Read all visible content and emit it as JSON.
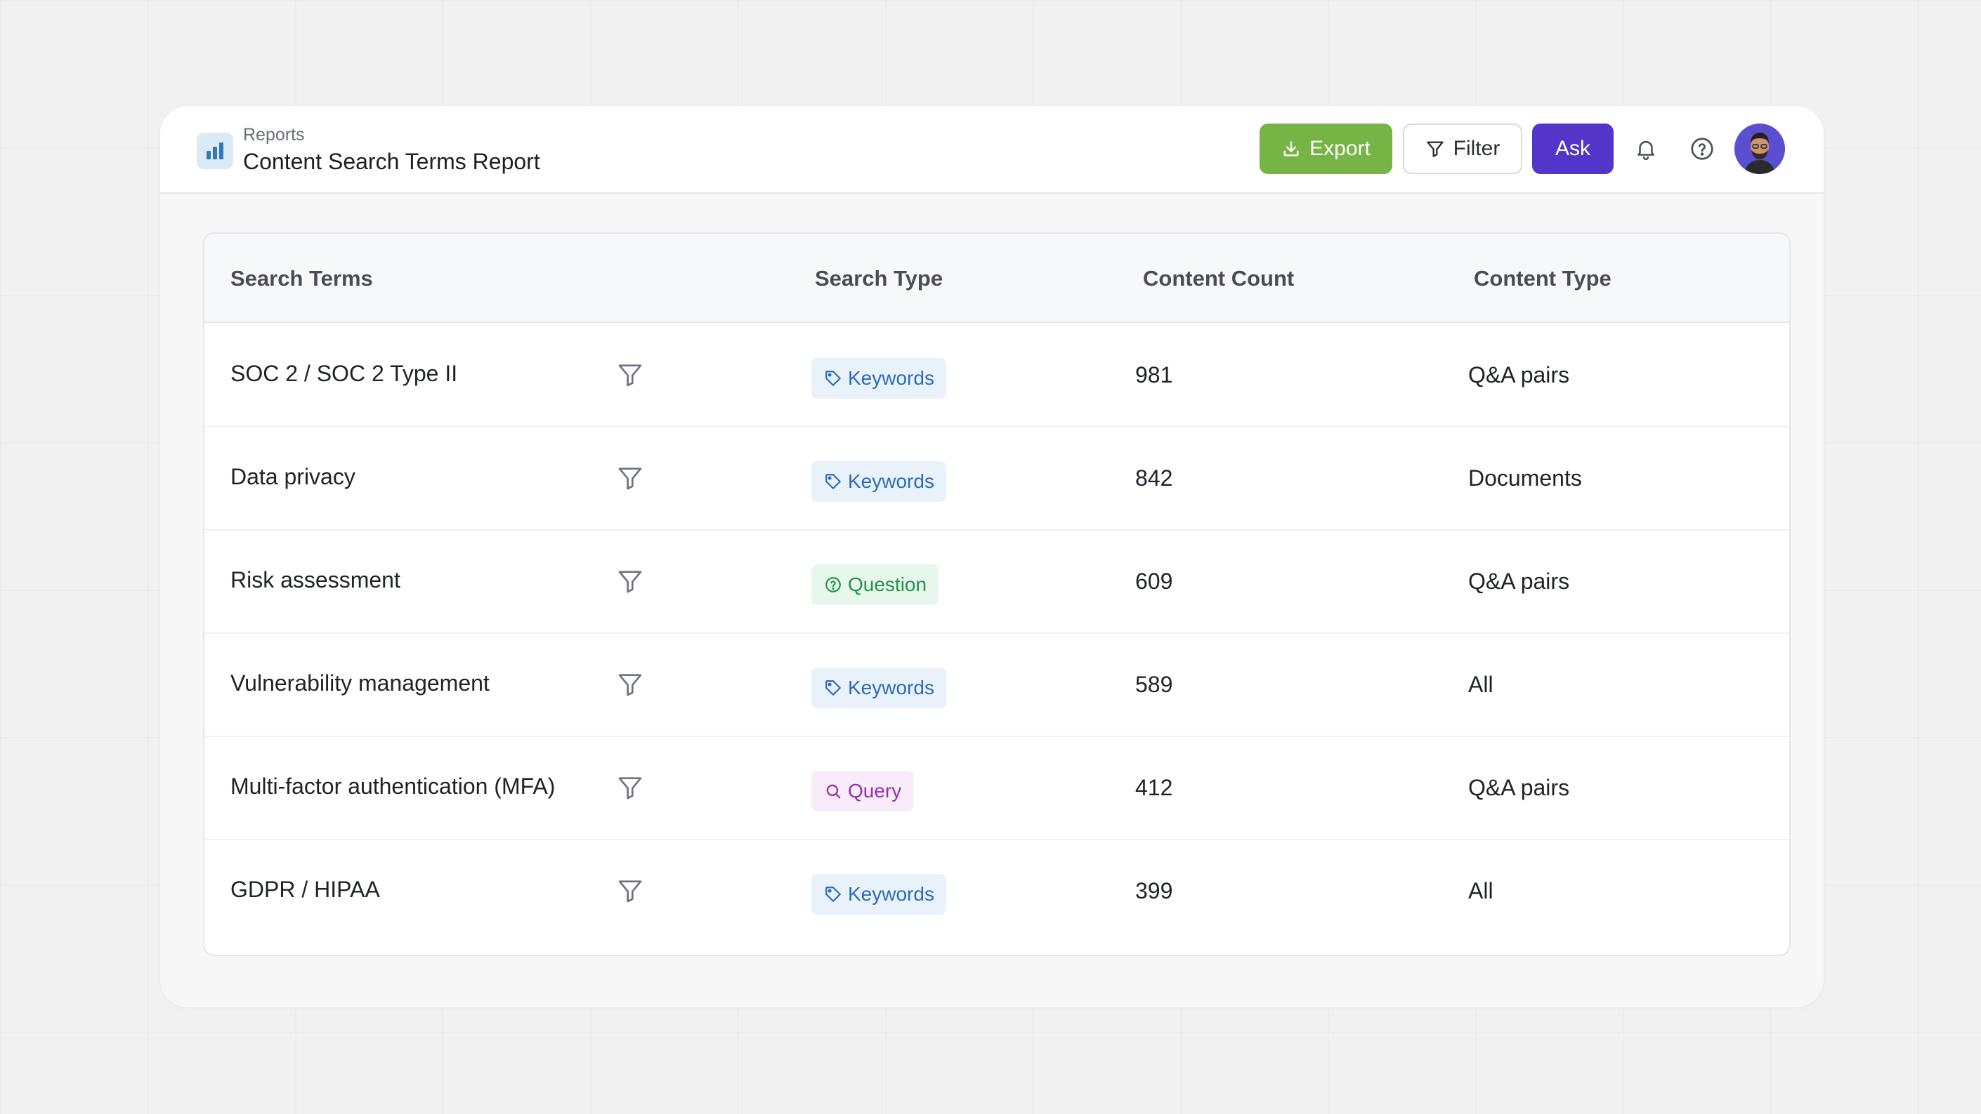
{
  "header": {
    "breadcrumb": "Reports",
    "title": "Content Search Terms Report",
    "actions": {
      "export_label": "Export",
      "filter_label": "Filter",
      "ask_label": "Ask"
    },
    "icons": [
      "bar-chart-icon",
      "download-icon",
      "filter-icon",
      "bell-icon",
      "help-icon"
    ]
  },
  "table": {
    "columns": [
      "Search Terms",
      "Search Type",
      "Content Count",
      "Content Type"
    ],
    "rows": [
      {
        "term": "SOC 2 / SOC 2 Type II",
        "type": "Keywords",
        "type_kind": "keywords",
        "count": "981",
        "content_type": "Q&A pairs"
      },
      {
        "term": "Data privacy",
        "type": "Keywords",
        "type_kind": "keywords",
        "count": "842",
        "content_type": "Documents"
      },
      {
        "term": "Risk assessment",
        "type": "Question",
        "type_kind": "question",
        "count": "609",
        "content_type": "Q&A pairs"
      },
      {
        "term": "Vulnerability management",
        "type": "Keywords",
        "type_kind": "keywords",
        "count": "589",
        "content_type": "All"
      },
      {
        "term": "Multi-factor authentication (MFA)",
        "type": "Query",
        "type_kind": "query",
        "count": "412",
        "content_type": "Q&A pairs"
      },
      {
        "term": "GDPR / HIPAA",
        "type": "Keywords",
        "type_kind": "keywords",
        "count": "399",
        "content_type": "All"
      }
    ]
  },
  "colors": {
    "export": "#76b446",
    "ask": "#5336c9",
    "keywords": "#2d6cb5",
    "question": "#22924a",
    "query": "#9b2eb0"
  }
}
